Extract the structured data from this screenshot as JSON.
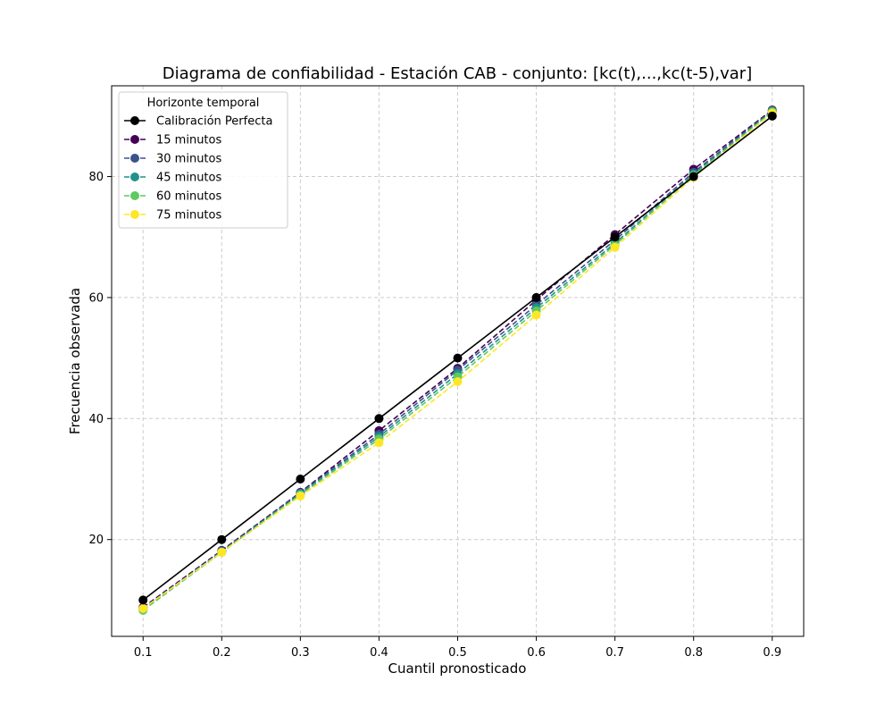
{
  "chart_data": {
    "type": "line",
    "title": "Diagrama de confiabilidad - Estación CAB - conjunto: [kc(t),...,kc(t-5),var]",
    "xlabel": "Cuantil pronosticado",
    "ylabel": "Frecuencia observada",
    "x": [
      0.1,
      0.2,
      0.3,
      0.4,
      0.5,
      0.6,
      0.7,
      0.8,
      0.9
    ],
    "x_ticks": [
      "0.1",
      "0.2",
      "0.3",
      "0.4",
      "0.5",
      "0.6",
      "0.7",
      "0.8",
      "0.9"
    ],
    "y_ticks": [
      "20",
      "40",
      "60",
      "80"
    ],
    "y_tick_values": [
      20,
      40,
      60,
      80
    ],
    "xlim": [
      0.06,
      0.94
    ],
    "ylim": [
      4,
      95
    ],
    "grid": true,
    "legend": {
      "title": "Horizonte temporal",
      "placement": "top-left"
    },
    "series": [
      {
        "name": "Calibración Perfecta",
        "style": "solid",
        "color": "#000000",
        "values": [
          10,
          20,
          30,
          40,
          50,
          60,
          70,
          80,
          90
        ]
      },
      {
        "name": "15 minutos",
        "style": "dashed",
        "color": "#440154",
        "values": [
          8.8,
          18.2,
          27.8,
          38.0,
          48.3,
          59.6,
          70.4,
          81.2,
          91.0
        ]
      },
      {
        "name": "30 minutos",
        "style": "dashed",
        "color": "#3b528b",
        "values": [
          8.6,
          18.1,
          27.7,
          37.4,
          48.0,
          58.8,
          69.5,
          80.7,
          90.9
        ]
      },
      {
        "name": "45 minutos",
        "style": "dashed",
        "color": "#21918c",
        "values": [
          8.5,
          18.0,
          27.6,
          37.0,
          47.4,
          58.3,
          69.0,
          80.4,
          90.8
        ]
      },
      {
        "name": "60 minutos",
        "style": "dashed",
        "color": "#5ec962",
        "values": [
          8.3,
          17.9,
          27.4,
          36.6,
          46.9,
          57.8,
          68.7,
          80.2,
          90.7
        ]
      },
      {
        "name": "75 minutos",
        "style": "dashed",
        "color": "#fde725",
        "values": [
          8.6,
          17.9,
          27.2,
          36.0,
          46.1,
          57.1,
          68.3,
          79.9,
          90.5
        ]
      }
    ]
  }
}
